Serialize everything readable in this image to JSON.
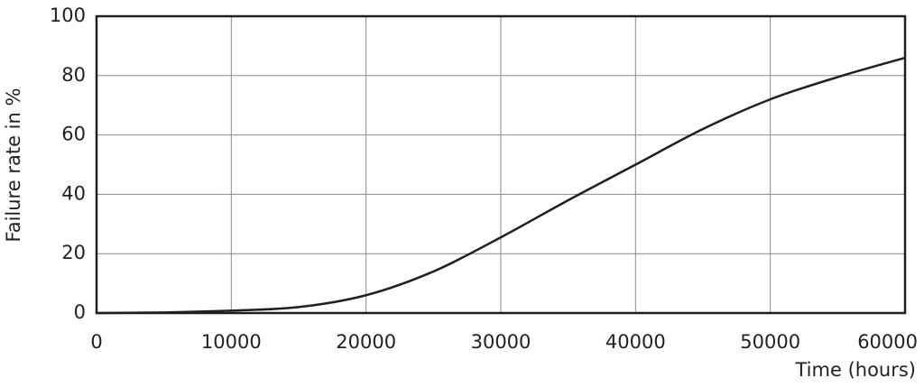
{
  "chart_data": {
    "type": "line",
    "x_label": "Time (hours)",
    "y_label": "Failure rate in %",
    "x": [
      0,
      5000,
      10000,
      15000,
      20000,
      25000,
      30000,
      35000,
      40000,
      45000,
      50000,
      55000,
      60000
    ],
    "series": [
      {
        "name": "Failure rate",
        "color": "#231f20",
        "values": [
          0,
          0.2,
          0.8,
          2,
          6,
          14,
          25.5,
          38,
          50,
          62,
          72,
          79.5,
          86
        ]
      }
    ],
    "xlim": [
      0,
      60000
    ],
    "xticks": [
      0,
      10000,
      20000,
      30000,
      40000,
      50000,
      60000
    ],
    "ylim": [
      0,
      100
    ],
    "yticks": [
      0,
      20,
      40,
      60,
      80,
      100
    ],
    "grid": true
  }
}
